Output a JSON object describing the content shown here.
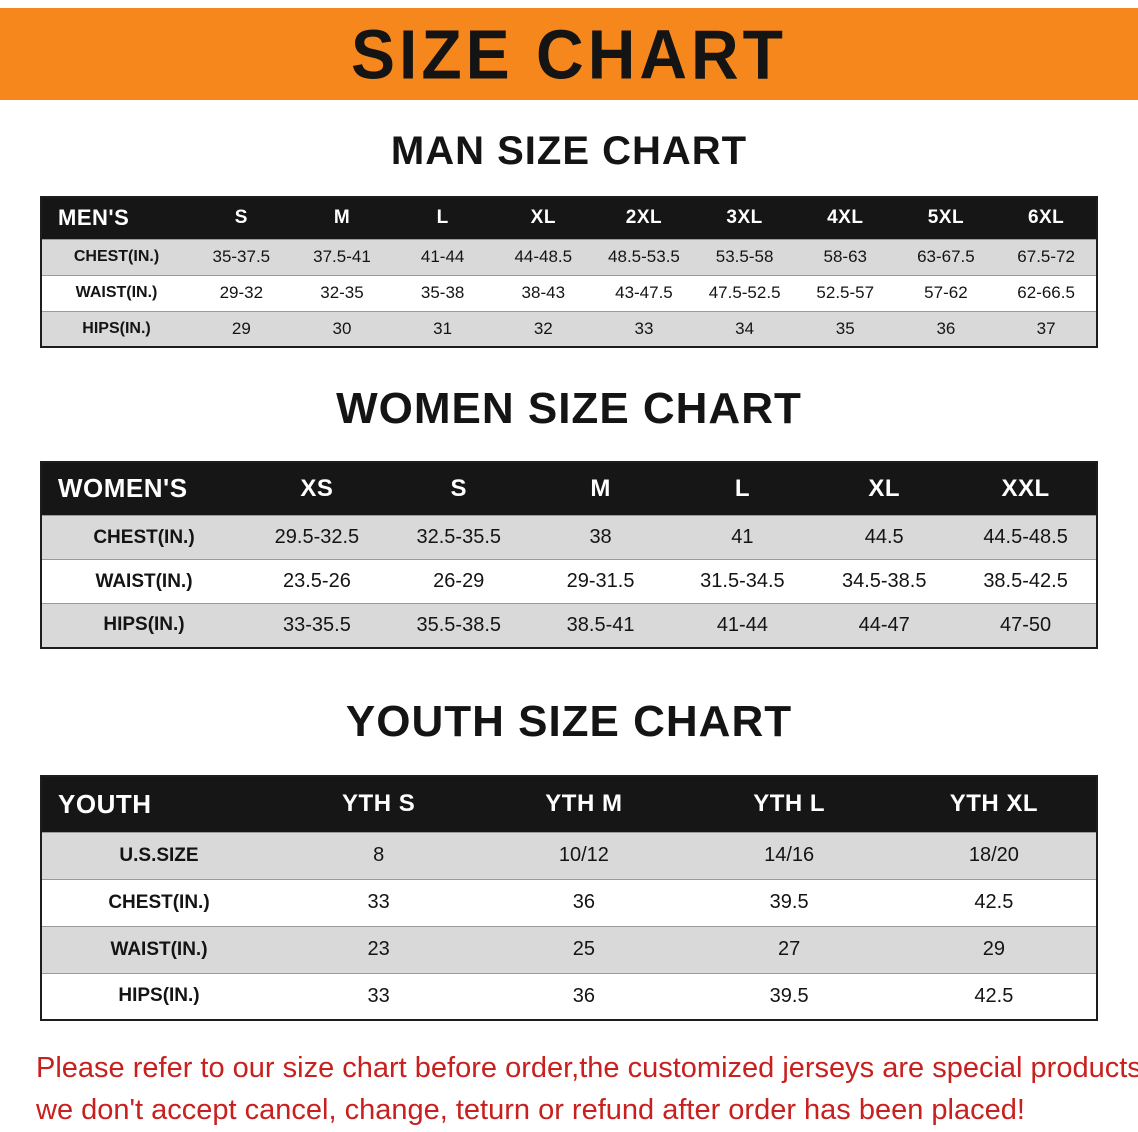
{
  "banner": {
    "title": "SIZE CHART"
  },
  "colors": {
    "banner_bg": "#f6871d",
    "header_bg": "#161616",
    "header_text": "#ffffff",
    "stripe": "#d9d9d9",
    "note_red": "#c8201e",
    "text": "#141414"
  },
  "sections": [
    {
      "id": "men",
      "heading": "MAN SIZE CHART",
      "header_label": "MEN'S",
      "columns": [
        "S",
        "M",
        "L",
        "XL",
        "2XL",
        "3XL",
        "4XL",
        "5XL",
        "6XL"
      ],
      "rows": [
        {
          "label": "CHEST(IN.)",
          "values": [
            "35-37.5",
            "37.5-41",
            "41-44",
            "44-48.5",
            "48.5-53.5",
            "53.5-58",
            "58-63",
            "63-67.5",
            "67.5-72"
          ]
        },
        {
          "label": "WAIST(IN.)",
          "values": [
            "29-32",
            "32-35",
            "35-38",
            "38-43",
            "43-47.5",
            "47.5-52.5",
            "52.5-57",
            "57-62",
            "62-66.5"
          ]
        },
        {
          "label": "HIPS(IN.)",
          "values": [
            "29",
            "30",
            "31",
            "32",
            "33",
            "34",
            "35",
            "36",
            "37"
          ]
        }
      ]
    },
    {
      "id": "women",
      "heading": "WOMEN SIZE CHART",
      "header_label": "WOMEN'S",
      "columns": [
        "XS",
        "S",
        "M",
        "L",
        "XL",
        "XXL"
      ],
      "rows": [
        {
          "label": "CHEST(IN.)",
          "values": [
            "29.5-32.5",
            "32.5-35.5",
            "38",
            "41",
            "44.5",
            "44.5-48.5"
          ]
        },
        {
          "label": "WAIST(IN.)",
          "values": [
            "23.5-26",
            "26-29",
            "29-31.5",
            "31.5-34.5",
            "34.5-38.5",
            "38.5-42.5"
          ]
        },
        {
          "label": "HIPS(IN.)",
          "values": [
            "33-35.5",
            "35.5-38.5",
            "38.5-41",
            "41-44",
            "44-47",
            "47-50"
          ]
        }
      ]
    },
    {
      "id": "youth",
      "heading": "YOUTH SIZE CHART",
      "header_label": "YOUTH",
      "columns": [
        "YTH S",
        "YTH M",
        "YTH L",
        "YTH XL"
      ],
      "rows": [
        {
          "label": "U.S.SIZE",
          "values": [
            "8",
            "10/12",
            "14/16",
            "18/20"
          ]
        },
        {
          "label": "CHEST(IN.)",
          "values": [
            "33",
            "36",
            "39.5",
            "42.5"
          ]
        },
        {
          "label": "WAIST(IN.)",
          "values": [
            "23",
            "25",
            "27",
            "29"
          ]
        },
        {
          "label": "HIPS(IN.)",
          "values": [
            "33",
            "36",
            "39.5",
            "42.5"
          ]
        }
      ]
    }
  ],
  "footer_note": {
    "line1": "Please refer to our size chart before order,the customized jerseys are special products,",
    "line2": "we don't accept cancel, change, teturn or refund after order has been placed!"
  }
}
